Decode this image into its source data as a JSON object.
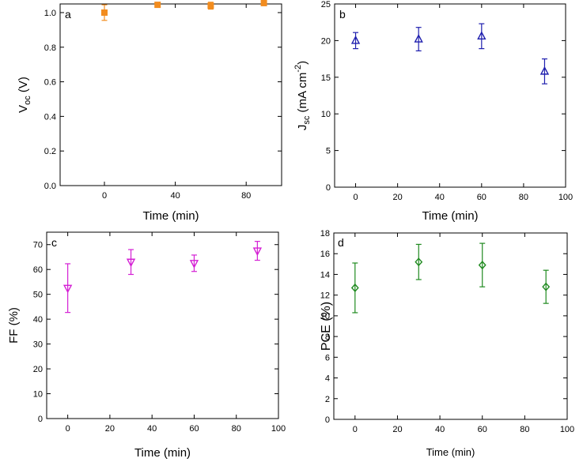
{
  "chart_data": [
    {
      "id": "a",
      "type": "scatter",
      "panel_label": "a",
      "marker": "square",
      "color": "#f28c1e",
      "xlabel": "Time (min)",
      "ylabel": {
        "main": "V",
        "sub": "oc",
        "rest": " (V)"
      },
      "xlim": [
        -25,
        100
      ],
      "ylim": [
        0.0,
        1.05
      ],
      "xticks": [
        0,
        40,
        80
      ],
      "yticks": [
        0.0,
        0.2,
        0.4,
        0.6,
        0.8,
        1.0
      ],
      "ytick_labels": [
        "0.0",
        "0.2",
        "0.4",
        "0.6",
        "0.8",
        "1.0"
      ],
      "points": [
        {
          "x": 0,
          "y": 1.0,
          "err": 0.045
        },
        {
          "x": 30,
          "y": 1.045,
          "err": 0.008
        },
        {
          "x": 60,
          "y": 1.04,
          "err": 0.02
        },
        {
          "x": 90,
          "y": 1.055,
          "err": 0.012
        }
      ]
    },
    {
      "id": "b",
      "type": "scatter",
      "panel_label": "b",
      "marker": "triangle-up",
      "color": "#1f1fae",
      "xlabel": "Time (min)",
      "ylabel": {
        "main": "J",
        "sub": "sc",
        "rest": " (mA cm",
        "sup": "-2",
        "end": ")"
      },
      "xlim": [
        -10,
        100
      ],
      "ylim": [
        0,
        25
      ],
      "xticks": [
        0,
        20,
        40,
        60,
        80,
        100
      ],
      "yticks": [
        0,
        5,
        10,
        15,
        20,
        25
      ],
      "ytick_labels": [
        "0",
        "5",
        "10",
        "15",
        "20",
        "25"
      ],
      "points": [
        {
          "x": 0,
          "y": 20.0,
          "err": 1.1
        },
        {
          "x": 30,
          "y": 20.2,
          "err": 1.6
        },
        {
          "x": 60,
          "y": 20.6,
          "err": 1.7
        },
        {
          "x": 90,
          "y": 15.8,
          "err": 1.7
        }
      ]
    },
    {
      "id": "c",
      "type": "scatter",
      "panel_label": "c",
      "marker": "triangle-down",
      "color": "#d41fd4",
      "xlabel": "Time (min)",
      "ylabel": {
        "main": "FF (%)"
      },
      "xlim": [
        -10,
        100
      ],
      "ylim": [
        0,
        75
      ],
      "xticks": [
        0,
        20,
        40,
        60,
        80,
        100
      ],
      "yticks": [
        0,
        10,
        20,
        30,
        40,
        50,
        60,
        70
      ],
      "ytick_labels": [
        "0",
        "10",
        "20",
        "30",
        "40",
        "50",
        "60",
        "70"
      ],
      "points": [
        {
          "x": 0,
          "y": 52.5,
          "err": 9.8
        },
        {
          "x": 30,
          "y": 63.0,
          "err": 5.0
        },
        {
          "x": 60,
          "y": 62.5,
          "err": 3.3
        },
        {
          "x": 90,
          "y": 67.5,
          "err": 3.8
        }
      ]
    },
    {
      "id": "d",
      "type": "scatter",
      "panel_label": "d",
      "marker": "diamond",
      "color": "#1f8a1f",
      "xlabel": "Time (min)",
      "ylabel": {
        "main": "PCE (%)"
      },
      "xlim": [
        -10,
        100
      ],
      "ylim": [
        0,
        18
      ],
      "xticks": [
        0,
        20,
        40,
        60,
        80,
        100
      ],
      "yticks": [
        0,
        2,
        4,
        6,
        8,
        10,
        12,
        14,
        16,
        18
      ],
      "ytick_labels": [
        "0",
        "2",
        "4",
        "6",
        "8",
        "10",
        "12",
        "14",
        "16",
        "18"
      ],
      "points": [
        {
          "x": 0,
          "y": 12.7,
          "err": 2.4
        },
        {
          "x": 30,
          "y": 15.2,
          "err": 1.7
        },
        {
          "x": 60,
          "y": 14.9,
          "err": 2.1
        },
        {
          "x": 90,
          "y": 12.8,
          "err": 1.6
        }
      ]
    }
  ]
}
